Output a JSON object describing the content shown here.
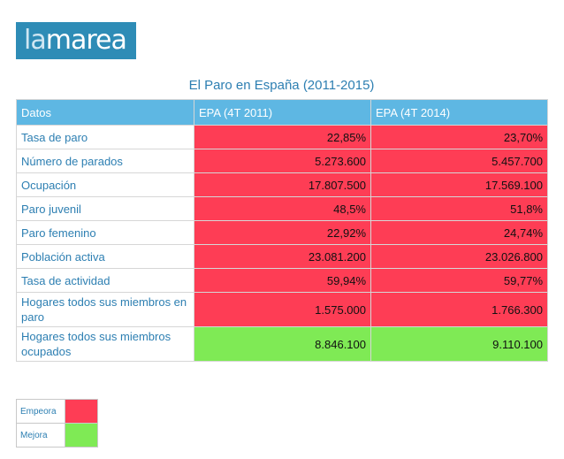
{
  "logo": {
    "part1": "la",
    "part2": "marea"
  },
  "title": "El Paro en España (2011-2015)",
  "table": {
    "headers": [
      "Datos",
      "EPA (4T 2011)",
      "EPA (4T 2014)"
    ],
    "rows": [
      {
        "label": "Tasa de paro",
        "v2011": "22,85%",
        "v2014": "23,70%",
        "status": "Empeora"
      },
      {
        "label": "Número de parados",
        "v2011": "5.273.600",
        "v2014": "5.457.700",
        "status": "Empeora"
      },
      {
        "label": "Ocupación",
        "v2011": "17.807.500",
        "v2014": "17.569.100",
        "status": "Empeora"
      },
      {
        "label": "Paro juvenil",
        "v2011": "48,5%",
        "v2014": "51,8%",
        "status": "Empeora"
      },
      {
        "label": "Paro femenino",
        "v2011": "22,92%",
        "v2014": "24,74%",
        "status": "Empeora"
      },
      {
        "label": "Población activa",
        "v2011": "23.081.200",
        "v2014": "23.026.800",
        "status": "Empeora"
      },
      {
        "label": "Tasa de actividad",
        "v2011": "59,94%",
        "v2014": "59,77%",
        "status": "Empeora"
      },
      {
        "label": "Hogares todos sus miembros en paro",
        "v2011": "1.575.000",
        "v2014": "1.766.300",
        "status": "Empeora"
      },
      {
        "label": "Hogares todos sus miembros ocupados",
        "v2011": "8.846.100",
        "v2014": "9.110.100",
        "status": "Mejora"
      }
    ]
  },
  "legend": [
    {
      "label": "Empeora",
      "color": "#fe3d55"
    },
    {
      "label": "Mejora",
      "color": "#7fea55"
    }
  ]
}
